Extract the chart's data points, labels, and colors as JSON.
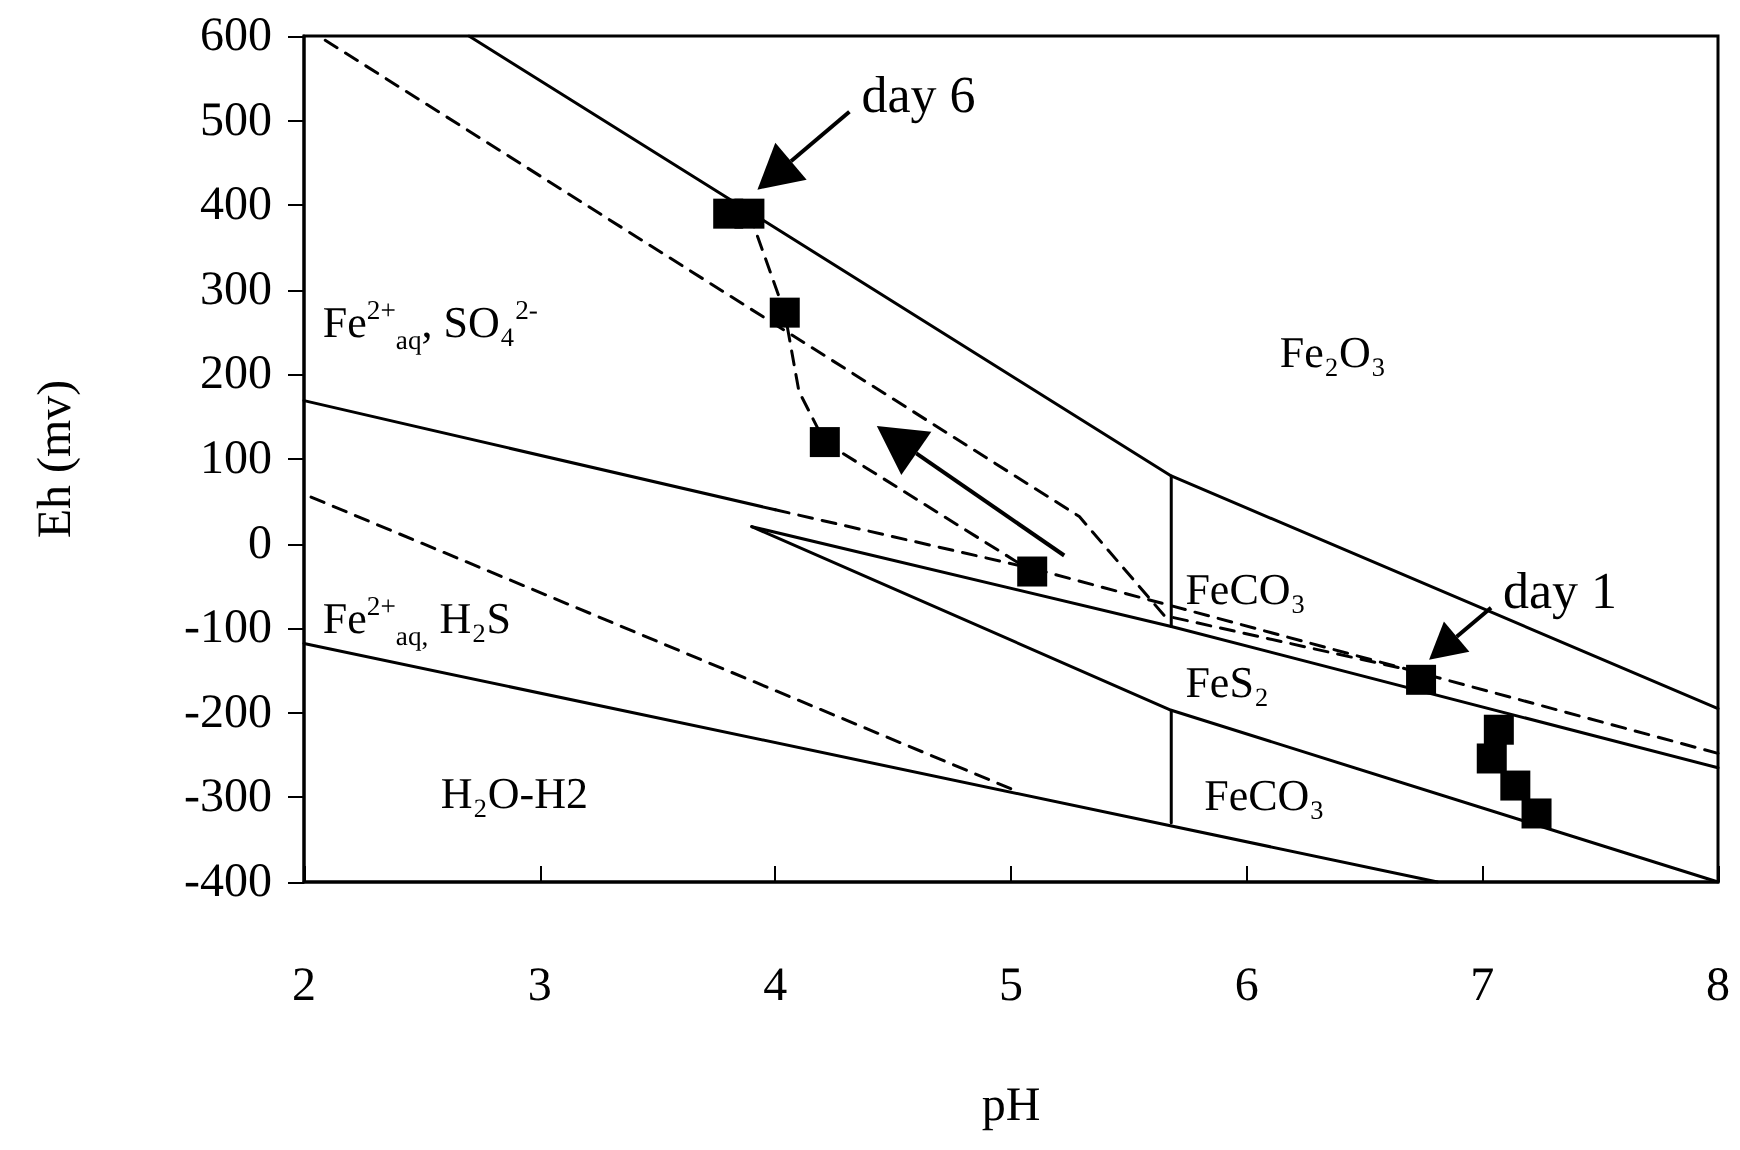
{
  "chart_data": {
    "type": "scatter",
    "xlabel": "pH",
    "ylabel": "Eh (mv)",
    "xlim": [
      2,
      8
    ],
    "ylim": [
      -400,
      600
    ],
    "xticks": [
      2,
      3,
      4,
      5,
      6,
      7,
      8
    ],
    "yticks": [
      -400,
      -300,
      -200,
      -100,
      0,
      100,
      200,
      300,
      400,
      500,
      600
    ],
    "grid": false,
    "series": [
      {
        "color": "#000000",
        "marker": "square",
        "x": [
          3.8,
          3.89,
          4.04,
          4.21,
          5.09,
          6.74,
          7.07,
          7.04,
          7.14,
          7.23
        ],
        "values": [
          390,
          390,
          273,
          120,
          -33,
          -161,
          -220,
          -254,
          -286,
          -319
        ]
      },
      {
        "type": "line",
        "color": "#000000",
        "line_style": "dashed",
        "marker": "none",
        "x": [
          3.89,
          4.04,
          4.1,
          4.21,
          5.09
        ],
        "values": [
          390,
          273,
          180,
          120,
          -33
        ]
      },
      {
        "type": "line",
        "color": "#000000",
        "line_style": "solid",
        "marker": "none",
        "x": [
          2.7,
          5.68,
          8
        ],
        "values": [
          600,
          80,
          -195
        ]
      },
      {
        "type": "line",
        "color": "#000000",
        "line_style": "solid",
        "marker": "none",
        "x": [
          5.68,
          5.68
        ],
        "values": [
          80,
          -98
        ]
      },
      {
        "type": "line",
        "color": "#000000",
        "line_style": "solid",
        "marker": "none",
        "x": [
          5.68,
          5.68
        ],
        "values": [
          -197,
          -330
        ]
      },
      {
        "type": "line",
        "color": "#000000",
        "line_style": "solid",
        "marker": "none",
        "x": [
          2,
          4
        ],
        "values": [
          169,
          40
        ]
      },
      {
        "type": "line",
        "color": "#000000",
        "line_style": "dashed",
        "marker": "none",
        "x": [
          4,
          5.1,
          6.7,
          8
        ],
        "values": [
          40,
          -30,
          -150,
          -248
        ]
      },
      {
        "type": "line",
        "color": "#000000",
        "line_style": "dashed",
        "marker": "none",
        "x": [
          2.09,
          5.29,
          5.65,
          6.7
        ],
        "values": [
          595,
          32,
          -85,
          -150
        ]
      },
      {
        "type": "line",
        "color": "#000000",
        "line_style": "dashed",
        "marker": "none",
        "x": [
          2.03,
          5.01
        ],
        "values": [
          55,
          -291
        ]
      },
      {
        "type": "line",
        "color": "#000000",
        "line_style": "solid",
        "marker": "none",
        "x": [
          2,
          6.81
        ],
        "values": [
          -118,
          -400
        ]
      },
      {
        "type": "line",
        "color": "#000000",
        "line_style": "solid",
        "marker": "none",
        "x": [
          3.9,
          5.68,
          8
        ],
        "values": [
          20,
          -98,
          -265
        ]
      },
      {
        "type": "line",
        "color": "#000000",
        "line_style": "solid",
        "marker": "none",
        "x": [
          3.9,
          5.68,
          8
        ],
        "values": [
          20,
          -197,
          -400
        ]
      }
    ],
    "annotations": [
      {
        "text": "day 6",
        "x": 3.89,
        "y": 390
      },
      {
        "text": "day 1",
        "x": 6.74,
        "y": -161
      },
      "Fe₂O₃",
      "Fe$^{2+}$$_{aq}$, SO₄$^{2-}$",
      "FeCO₃",
      "FeS₂",
      "FeCO₃",
      "Fe$^{2+}$$_{aq,}$ H₂S",
      "H₂O-H2"
    ]
  }
}
